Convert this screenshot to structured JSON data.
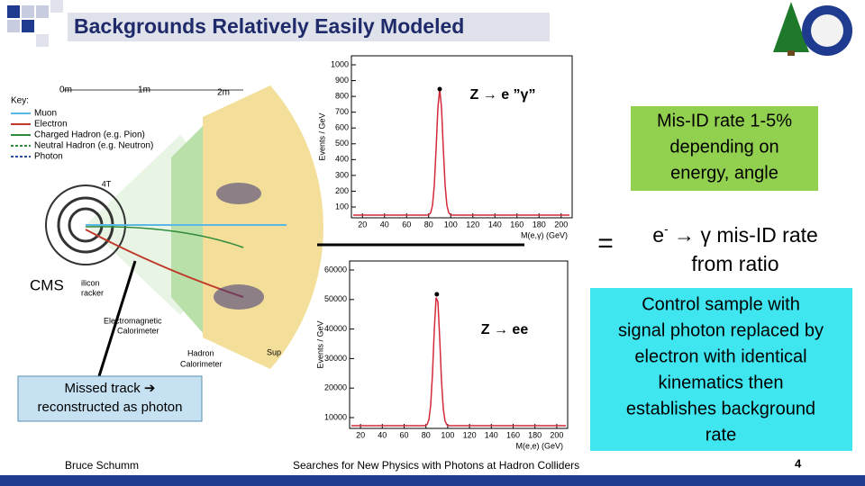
{
  "title": "Backgrounds Relatively Easily Modeled",
  "detector": {
    "key_title": "Key:",
    "key": [
      "Muon",
      "Electron",
      "Charged Hadron (e.g. Pion)",
      "Neutral Hadron (e.g. Neutron)",
      "Photon"
    ],
    "scale": [
      "0m",
      "1m",
      "2m"
    ],
    "field": "4T",
    "cms": "CMS",
    "ecal": [
      "Electromagnetic",
      "Calorimeter"
    ],
    "hcal": [
      "Hadron",
      "Calorimeter"
    ],
    "tracker": [
      "ilicon",
      "racker"
    ],
    "solenoid": "Sup"
  },
  "callout": [
    "Missed track ➔",
    "reconstructed as photon"
  ],
  "plot_top": {
    "label": "Z → e ”γ”",
    "ylabel": "Events / GeV",
    "xlabel": "M(e,γ) (GeV)",
    "yticks": [
      100,
      200,
      300,
      400,
      500,
      600,
      700,
      800,
      900,
      1000
    ],
    "xticks": [
      20,
      40,
      60,
      80,
      100,
      120,
      140,
      160,
      180,
      200
    ]
  },
  "plot_bottom": {
    "label": "Z → ee",
    "ylabel": "Events / GeV",
    "xlabel": "M(e,e) (GeV)",
    "yticks": [
      10000,
      20000,
      30000,
      40000,
      50000,
      60000
    ],
    "xticks": [
      20,
      40,
      60,
      80,
      100,
      120,
      140,
      160,
      180,
      200
    ]
  },
  "misid_box": [
    "Mis-ID rate 1-5%",
    "depending on",
    "energy, angle"
  ],
  "equals": "=",
  "ratio": {
    "e": "e",
    "sup": "-",
    "rest": " → γ mis-ID rate",
    "line2": "from ratio"
  },
  "control_box": [
    "Control sample with",
    "signal photon replaced by",
    "electron with identical",
    "kinematics then",
    "establishes background",
    "rate"
  ],
  "footer": {
    "author": "Bruce Schumm",
    "center": "Searches for New Physics with Photons at Hadron Colliders",
    "page": "4"
  }
}
